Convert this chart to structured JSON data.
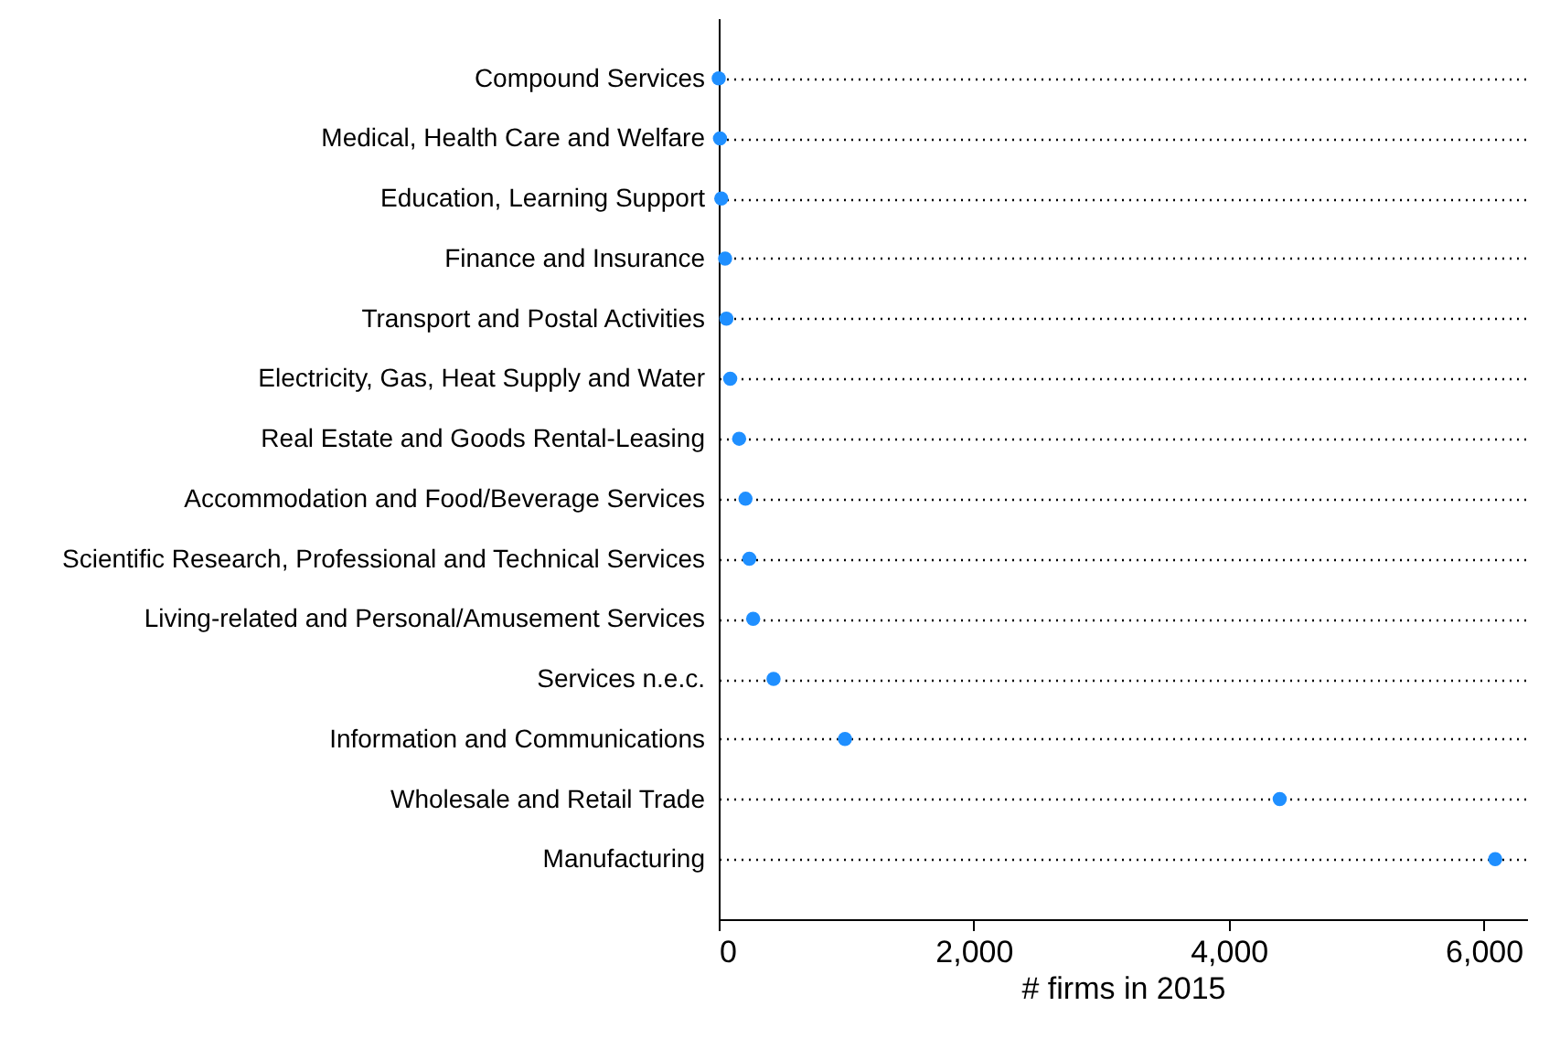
{
  "chart_data": {
    "type": "scatter",
    "orientation": "horizontal",
    "xlabel": "# firms in 2015",
    "categories": [
      "Compound Services",
      "Medical, Health Care and Welfare",
      "Education, Learning Support",
      "Finance and Insurance",
      "Transport and Postal Activities",
      "Electricity, Gas, Heat Supply and Water",
      "Real Estate and Goods Rental-Leasing",
      "Accommodation and Food/Beverage Services",
      "Scientific Research, Professional and Technical Services",
      "Living-related and Personal/Amusement Services",
      "Services n.e.c.",
      "Information and Communications",
      "Wholesale and Retail Trade",
      "Manufacturing"
    ],
    "values": [
      0,
      10,
      20,
      50,
      60,
      90,
      160,
      210,
      240,
      270,
      430,
      990,
      4400,
      6090
    ],
    "color": "#1f8fff",
    "marker": "circle",
    "xlim": [
      0,
      6340
    ],
    "xticks": [
      0,
      {
        "value": 2000,
        "label": "2,000"
      },
      {
        "value": 4000,
        "label": "4,000"
      },
      {
        "value": 6000,
        "label": "6,000"
      }
    ],
    "grid": "y",
    "line_style": "dotted"
  }
}
